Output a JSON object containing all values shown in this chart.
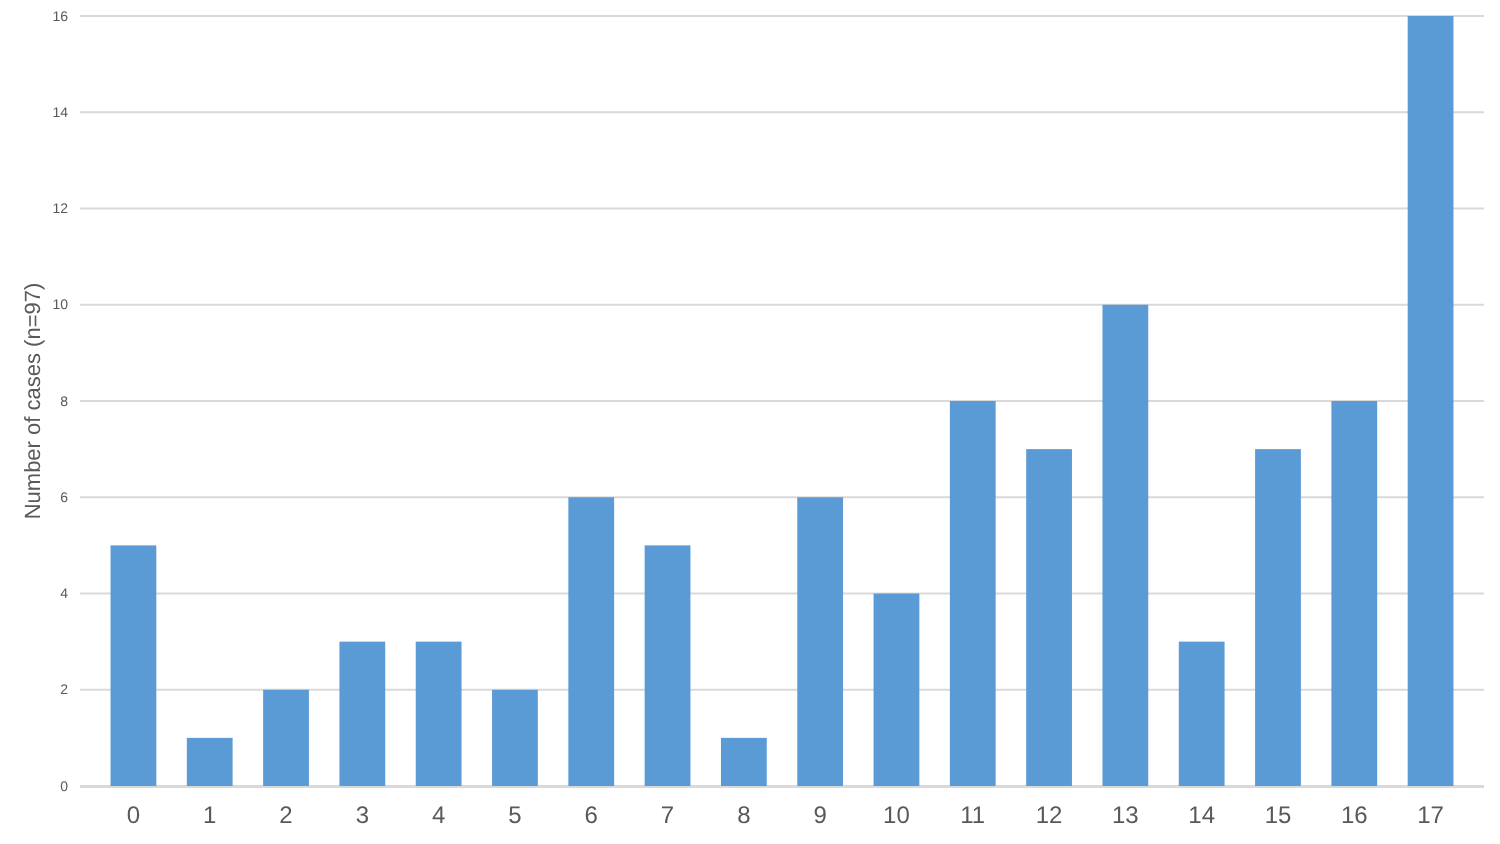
{
  "chart_data": {
    "type": "bar",
    "ylabel": "Number of cases (n=97)",
    "categories": [
      "0",
      "1",
      "2",
      "3",
      "4",
      "5",
      "6",
      "7",
      "8",
      "9",
      "10",
      "11",
      "12",
      "13",
      "14",
      "15",
      "16",
      "17"
    ],
    "values": [
      5,
      1,
      2,
      3,
      3,
      2,
      6,
      5,
      1,
      6,
      4,
      8,
      7,
      10,
      3,
      7,
      8,
      16
    ],
    "color": "#5b9bd5",
    "ylim": [
      0,
      16
    ],
    "yticks": [
      0,
      2,
      4,
      6,
      8,
      10,
      12,
      14,
      16
    ],
    "grid": "y"
  }
}
